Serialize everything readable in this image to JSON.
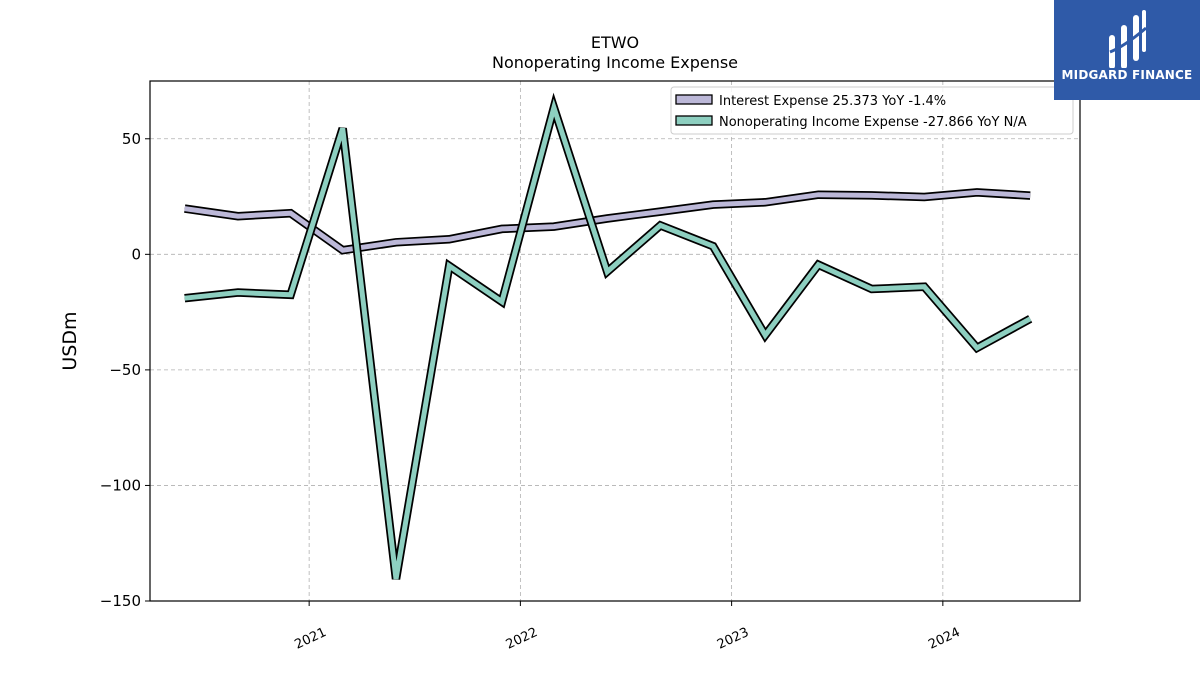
{
  "brand": {
    "name": "MIDGARD FINANCE",
    "color": "#2f5aa8"
  },
  "chart_data": {
    "type": "line",
    "title": "ETWO",
    "subtitle": "Nonoperating Income Expense",
    "xlabel": "",
    "ylabel": "USDm",
    "ylim": [
      -150,
      75
    ],
    "xlim": [
      "2020-04-01",
      "2024-08-25"
    ],
    "yticks": [
      50,
      0,
      -50,
      -100,
      -150
    ],
    "ytick_labels": [
      "50",
      "0",
      "−50",
      "−100",
      "−150"
    ],
    "xticks": [
      "2021-01-01",
      "2022-01-01",
      "2023-01-01",
      "2024-01-01"
    ],
    "xtick_labels": [
      "2021",
      "2022",
      "2023",
      "2024"
    ],
    "grid": true,
    "legend_position": "top-right",
    "x": [
      "2020-05-31",
      "2020-08-31",
      "2020-11-30",
      "2021-02-28",
      "2021-05-31",
      "2021-08-31",
      "2021-11-30",
      "2022-02-28",
      "2022-05-31",
      "2022-08-31",
      "2022-11-30",
      "2023-02-28",
      "2023-05-31",
      "2023-08-31",
      "2023-11-30",
      "2024-02-29",
      "2024-05-31"
    ],
    "series": [
      {
        "name": "Interest Expense",
        "legend_label": "Interest Expense  25.373 YoY -1.4%",
        "color": "#bcb8d8",
        "values": [
          19.8,
          16.5,
          17.8,
          1.8,
          5.2,
          6.5,
          11.0,
          12.0,
          15.5,
          18.5,
          21.5,
          22.5,
          25.8,
          25.5,
          24.8,
          26.8,
          25.4
        ]
      },
      {
        "name": "Nonoperating Income Expense",
        "legend_label": "Nonoperating Income Expense  -27.866 YoY N/A",
        "color": "#8dcfc0",
        "values": [
          -19.0,
          -16.5,
          -17.5,
          54.5,
          -140.5,
          -5.0,
          -20.5,
          63.5,
          -7.5,
          12.5,
          3.5,
          -35.0,
          -4.5,
          -15.0,
          -14.0,
          -40.5,
          -27.9
        ]
      }
    ]
  }
}
